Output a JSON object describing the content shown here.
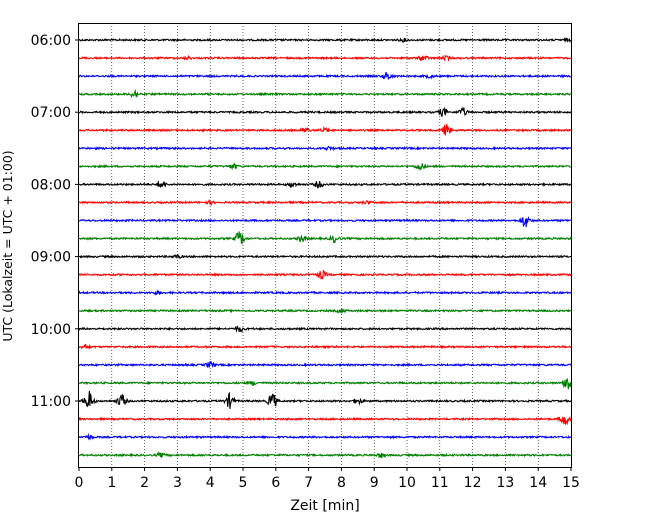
{
  "chart_data": {
    "type": "line",
    "title": "",
    "xlabel": "Zeit  [min]",
    "ylabel": "UTC (Lokalzeit = UTC + 01:00)",
    "xlim": [
      0,
      15
    ],
    "x_ticks": [
      "0",
      "1",
      "2",
      "3",
      "4",
      "5",
      "6",
      "7",
      "8",
      "9",
      "10",
      "11",
      "12",
      "13",
      "14",
      "15"
    ],
    "x_grid": "dotted",
    "y_tick_labels": [
      "06:00",
      "07:00",
      "08:00",
      "09:00",
      "10:00",
      "11:00"
    ],
    "trace_interval_min": 15,
    "trace_colors": [
      "#000000",
      "#ff0000",
      "#0000ff",
      "#008000"
    ],
    "traces": [
      {
        "start": "05:45",
        "color": "#000000",
        "events": [
          {
            "t": 9.9,
            "amp": 0.15
          },
          {
            "t": 14.9,
            "amp": 0.1
          }
        ]
      },
      {
        "start": "06:00",
        "color": "#ff0000",
        "events": [
          {
            "t": 3.3,
            "amp": 0.15
          },
          {
            "t": 10.5,
            "amp": 0.3
          },
          {
            "t": 11.2,
            "amp": 0.2
          }
        ]
      },
      {
        "start": "06:15",
        "color": "#0000ff",
        "events": [
          {
            "t": 9.4,
            "amp": 0.4
          },
          {
            "t": 10.7,
            "amp": 0.15
          }
        ]
      },
      {
        "start": "06:30",
        "color": "#008000",
        "events": [
          {
            "t": 1.7,
            "amp": 0.45
          }
        ]
      },
      {
        "start": "06:45",
        "color": "#000000",
        "events": [
          {
            "t": 11.1,
            "amp": 0.45
          },
          {
            "t": 11.7,
            "amp": 0.45
          }
        ]
      },
      {
        "start": "07:00",
        "color": "#ff0000",
        "events": [
          {
            "t": 6.9,
            "amp": 0.25
          },
          {
            "t": 7.5,
            "amp": 0.2
          },
          {
            "t": 11.2,
            "amp": 0.6
          }
        ]
      },
      {
        "start": "07:15",
        "color": "#0000ff",
        "events": [
          {
            "t": 7.6,
            "amp": 0.15
          }
        ]
      },
      {
        "start": "07:30",
        "color": "#008000",
        "events": [
          {
            "t": 4.7,
            "amp": 0.25
          },
          {
            "t": 10.4,
            "amp": 0.4
          }
        ]
      },
      {
        "start": "07:45",
        "color": "#000000",
        "events": [
          {
            "t": 2.5,
            "amp": 0.3
          },
          {
            "t": 6.5,
            "amp": 0.25
          },
          {
            "t": 7.3,
            "amp": 0.35
          }
        ]
      },
      {
        "start": "08:00",
        "color": "#ff0000",
        "events": [
          {
            "t": 4.0,
            "amp": 0.15
          },
          {
            "t": 8.8,
            "amp": 0.15
          }
        ]
      },
      {
        "start": "08:15",
        "color": "#0000ff",
        "events": [
          {
            "t": 13.6,
            "amp": 0.7
          }
        ]
      },
      {
        "start": "08:30",
        "color": "#008000",
        "events": [
          {
            "t": 4.9,
            "amp": 0.8
          },
          {
            "t": 6.8,
            "amp": 0.35
          },
          {
            "t": 7.8,
            "amp": 0.4
          }
        ]
      },
      {
        "start": "08:45",
        "color": "#000000",
        "events": [
          {
            "t": 3.0,
            "amp": 0.15
          }
        ]
      },
      {
        "start": "09:00",
        "color": "#ff0000",
        "events": [
          {
            "t": 7.4,
            "amp": 0.45
          }
        ]
      },
      {
        "start": "09:15",
        "color": "#0000ff",
        "events": [
          {
            "t": 2.4,
            "amp": 0.15
          }
        ]
      },
      {
        "start": "09:30",
        "color": "#008000",
        "events": [
          {
            "t": 8.0,
            "amp": 0.2
          }
        ]
      },
      {
        "start": "09:45",
        "color": "#000000",
        "events": [
          {
            "t": 4.9,
            "amp": 0.3
          }
        ]
      },
      {
        "start": "10:00",
        "color": "#ff0000",
        "events": [
          {
            "t": 0.2,
            "amp": 0.2
          }
        ]
      },
      {
        "start": "10:15",
        "color": "#0000ff",
        "events": [
          {
            "t": 4.0,
            "amp": 0.35
          }
        ]
      },
      {
        "start": "10:30",
        "color": "#008000",
        "events": [
          {
            "t": 5.3,
            "amp": 0.2
          },
          {
            "t": 14.9,
            "amp": 0.9
          }
        ]
      },
      {
        "start": "10:45",
        "color": "#000000",
        "events": [
          {
            "t": 0.3,
            "amp": 1.1
          },
          {
            "t": 1.3,
            "amp": 0.7
          },
          {
            "t": 4.6,
            "amp": 0.8
          },
          {
            "t": 5.9,
            "amp": 0.9
          },
          {
            "t": 8.5,
            "amp": 0.3
          }
        ]
      },
      {
        "start": "11:00",
        "color": "#ff0000",
        "events": [
          {
            "t": 14.8,
            "amp": 0.7
          }
        ]
      },
      {
        "start": "11:15",
        "color": "#0000ff",
        "events": [
          {
            "t": 0.3,
            "amp": 0.2
          }
        ]
      },
      {
        "start": "11:30",
        "color": "#008000",
        "events": [
          {
            "t": 2.5,
            "amp": 0.2
          },
          {
            "t": 9.2,
            "amp": 0.25
          }
        ]
      }
    ]
  }
}
